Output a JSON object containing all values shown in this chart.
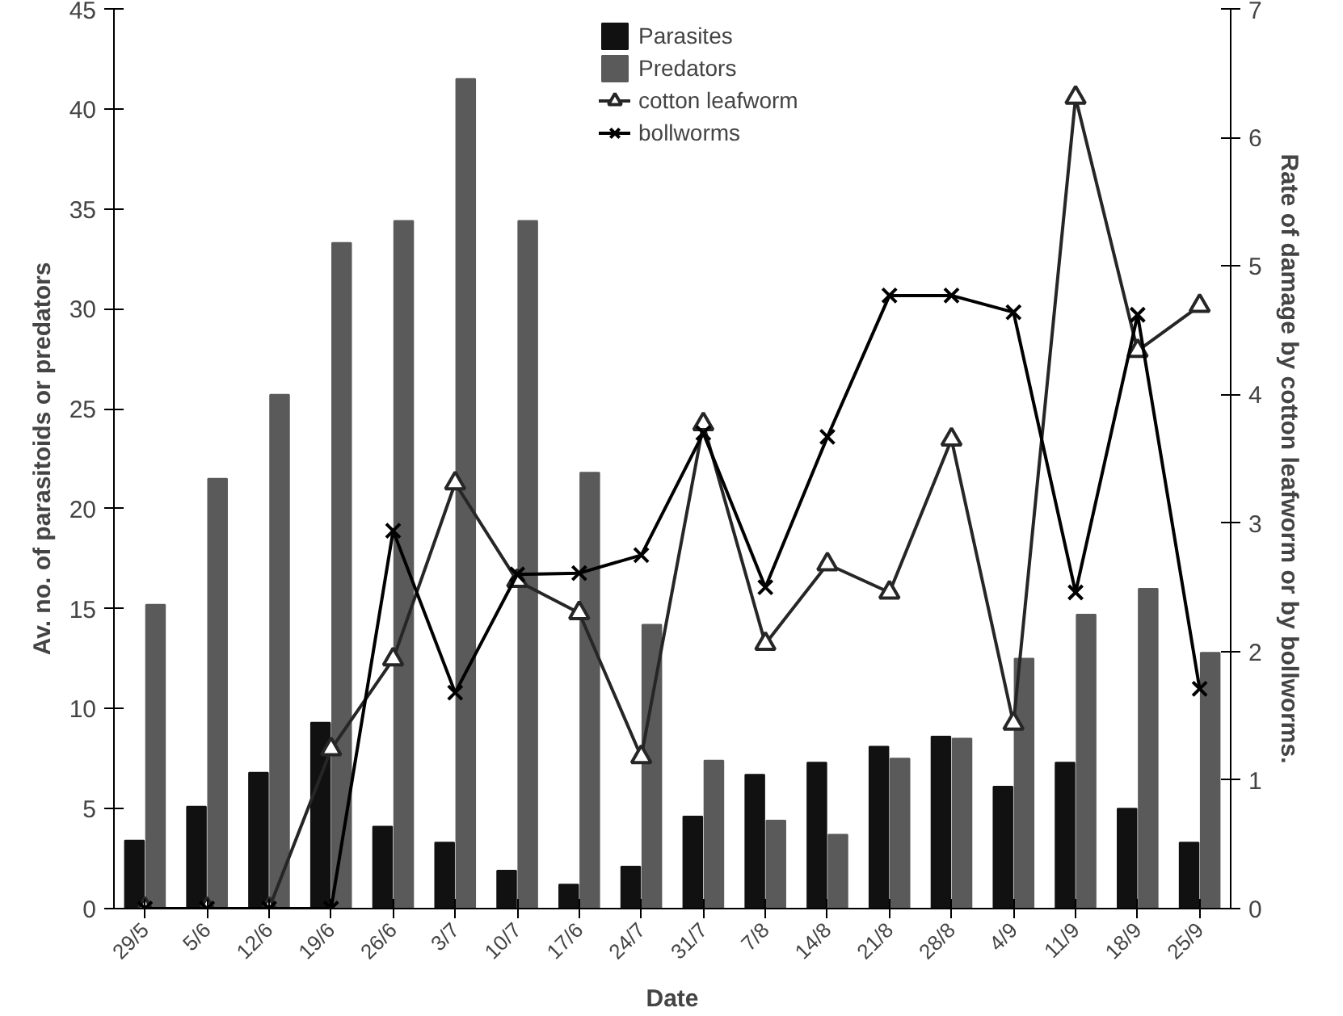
{
  "chart_data": {
    "type": "bar",
    "xlabel": "Date",
    "ylabel": "Av. no. of parasitoids or predators",
    "y2label": "Rate of damage by cotton leafworm or by bollworms.",
    "categories": [
      "29/5",
      "5/6",
      "12/6",
      "19/6",
      "26/6",
      "3/7",
      "10/7",
      "17/6",
      "24/7",
      "31/7",
      "7/8",
      "14/8",
      "21/8",
      "28/8",
      "4/9",
      "11/9",
      "18/9",
      "25/9"
    ],
    "series": [
      {
        "name": "Parasites",
        "color": "#111111",
        "values": [
          3.4,
          5.1,
          6.8,
          9.3,
          4.1,
          3.3,
          1.9,
          1.2,
          2.1,
          4.6,
          6.7,
          7.3,
          8.1,
          8.6,
          6.1,
          7.3,
          5.0,
          3.3
        ]
      },
      {
        "name": "Predators",
        "color": "#5a5a5a",
        "values": [
          15.2,
          21.5,
          25.7,
          33.3,
          34.4,
          41.5,
          34.4,
          21.8,
          14.2,
          7.4,
          4.4,
          3.7,
          7.5,
          8.5,
          12.5,
          14.7,
          16.0,
          12.8
        ]
      },
      {
        "name": "cotton leafworm",
        "type": "line",
        "axis": "y2",
        "marker": "triangle",
        "color": "#262626",
        "values": [
          0,
          0,
          0,
          1.24,
          1.94,
          3.31,
          2.55,
          2.3,
          1.18,
          3.77,
          2.06,
          2.68,
          2.46,
          3.65,
          1.44,
          6.31,
          4.34,
          4.69
        ]
      },
      {
        "name": "bollworms",
        "type": "line",
        "axis": "y2",
        "marker": "cross",
        "color": "#000000",
        "values": [
          0,
          0,
          0,
          0,
          2.94,
          1.68,
          2.6,
          2.61,
          2.75,
          3.7,
          2.5,
          3.67,
          4.77,
          4.77,
          4.64,
          2.46,
          4.62,
          1.71
        ]
      }
    ],
    "ylim": [
      0,
      45
    ],
    "yticks": [
      0,
      5,
      10,
      15,
      20,
      25,
      30,
      35,
      40,
      45
    ],
    "y2lim": [
      0,
      7
    ],
    "y2ticks": [
      0,
      1,
      2,
      3,
      4,
      5,
      6,
      7
    ],
    "legend": "top",
    "grid": false
  }
}
